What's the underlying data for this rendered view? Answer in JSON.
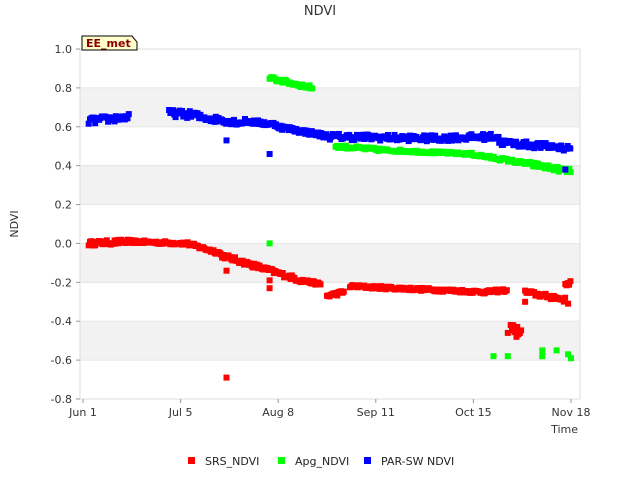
{
  "badge": {
    "text": "EE_met",
    "fill": "#ffffcc",
    "text_color": "#880000"
  },
  "chart_data": {
    "type": "scatter",
    "title": "NDVI",
    "xlabel": "Time",
    "ylabel": "NDVI",
    "ylim": [
      -0.8,
      1.0
    ],
    "xlim_days": [
      0,
      170
    ],
    "x_unit": "days since Jun 1",
    "yticks": [
      1.0,
      0.8,
      0.6,
      0.4,
      0.2,
      0.0,
      -0.2,
      -0.4,
      -0.6,
      -0.8
    ],
    "ytick_labels": [
      "1.0",
      "0.8",
      "0.6",
      "0.4",
      "0.2",
      "0.0",
      "-0.2",
      "-0.4",
      "-0.6",
      "-0.8"
    ],
    "xticks": [
      {
        "label": "Jun 1",
        "day": 0
      },
      {
        "label": "Jul 5",
        "day": 34
      },
      {
        "label": "Aug 8",
        "day": 68
      },
      {
        "label": "Sep 11",
        "day": 102
      },
      {
        "label": "Oct 15",
        "day": 136
      },
      {
        "label": "Nov 18",
        "day": 170
      }
    ],
    "grid": "horizontal alternating bands",
    "legend_position": "bottom",
    "series": [
      {
        "name": "SRS_NDVI",
        "color": "#ff0000",
        "segments": [
          {
            "d0": 2,
            "d1": 16,
            "y0": 0.0,
            "y1": 0.01,
            "jitter": 0.012
          },
          {
            "d0": 16,
            "d1": 36,
            "y0": 0.01,
            "y1": 0.0,
            "jitter": 0.008
          },
          {
            "d0": 36,
            "d1": 48,
            "y0": 0.0,
            "y1": -0.05,
            "jitter": 0.01
          },
          {
            "d0": 48,
            "d1": 76,
            "y0": -0.06,
            "y1": -0.19,
            "jitter": 0.012
          },
          {
            "d0": 76,
            "d1": 83,
            "y0": -0.19,
            "y1": -0.21,
            "jitter": 0.008
          },
          {
            "d0": 85,
            "d1": 91,
            "y0": -0.27,
            "y1": -0.25,
            "jitter": 0.01
          },
          {
            "d0": 93,
            "d1": 140,
            "y0": -0.22,
            "y1": -0.25,
            "jitter": 0.008
          },
          {
            "d0": 140,
            "d1": 148,
            "y0": -0.25,
            "y1": -0.24,
            "jitter": 0.008
          },
          {
            "d0": 149,
            "d1": 153,
            "y0": -0.43,
            "y1": -0.46,
            "jitter": 0.02
          },
          {
            "d0": 154,
            "d1": 168,
            "y0": -0.25,
            "y1": -0.29,
            "jitter": 0.012
          },
          {
            "d0": 168,
            "d1": 170,
            "y0": -0.21,
            "y1": -0.2,
            "jitter": 0.01
          }
        ],
        "outliers": [
          [
            50,
            -0.14
          ],
          [
            50,
            -0.69
          ],
          [
            65,
            -0.19
          ],
          [
            65,
            -0.23
          ],
          [
            154,
            -0.3
          ],
          [
            164,
            -0.27
          ],
          [
            169,
            -0.31
          ],
          [
            148,
            -0.46
          ],
          [
            151,
            -0.48
          ]
        ]
      },
      {
        "name": "Apg_NDVI",
        "color": "#00ff00",
        "segments": [
          {
            "d0": 65,
            "d1": 80,
            "y0": 0.85,
            "y1": 0.8,
            "jitter": 0.01
          },
          {
            "d0": 88,
            "d1": 105,
            "y0": 0.5,
            "y1": 0.48,
            "jitter": 0.008
          },
          {
            "d0": 105,
            "d1": 135,
            "y0": 0.48,
            "y1": 0.46,
            "jitter": 0.006
          },
          {
            "d0": 135,
            "d1": 155,
            "y0": 0.46,
            "y1": 0.41,
            "jitter": 0.008
          },
          {
            "d0": 155,
            "d1": 170,
            "y0": 0.41,
            "y1": 0.37,
            "jitter": 0.012
          }
        ],
        "outliers": [
          [
            65,
            0.0
          ],
          [
            143,
            -0.58
          ],
          [
            148,
            -0.58
          ],
          [
            160,
            -0.55
          ],
          [
            160,
            -0.58
          ],
          [
            165,
            -0.55
          ],
          [
            169,
            -0.57
          ],
          [
            170,
            -0.59
          ]
        ]
      },
      {
        "name": "PAR-SW NDVI",
        "color": "#0000ff",
        "segments": [
          {
            "d0": 2,
            "d1": 16,
            "y0": 0.63,
            "y1": 0.65,
            "jitter": 0.018
          },
          {
            "d0": 30,
            "d1": 40,
            "y0": 0.67,
            "y1": 0.66,
            "jitter": 0.018
          },
          {
            "d0": 40,
            "d1": 56,
            "y0": 0.65,
            "y1": 0.62,
            "jitter": 0.016
          },
          {
            "d0": 56,
            "d1": 68,
            "y0": 0.63,
            "y1": 0.61,
            "jitter": 0.012
          },
          {
            "d0": 68,
            "d1": 86,
            "y0": 0.6,
            "y1": 0.55,
            "jitter": 0.012
          },
          {
            "d0": 86,
            "d1": 120,
            "y0": 0.55,
            "y1": 0.54,
            "jitter": 0.016
          },
          {
            "d0": 120,
            "d1": 145,
            "y0": 0.54,
            "y1": 0.55,
            "jitter": 0.016
          },
          {
            "d0": 145,
            "d1": 170,
            "y0": 0.52,
            "y1": 0.49,
            "jitter": 0.016
          }
        ],
        "outliers": [
          [
            50,
            0.53
          ],
          [
            65,
            0.46
          ],
          [
            168,
            0.38
          ]
        ]
      }
    ]
  }
}
